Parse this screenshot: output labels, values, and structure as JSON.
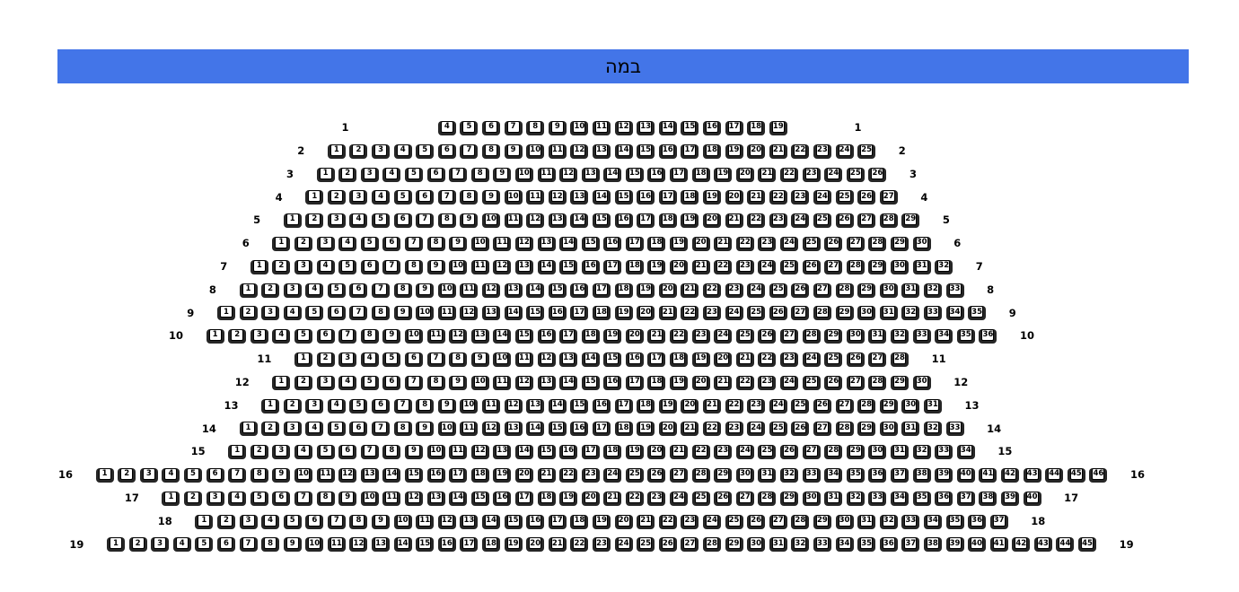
{
  "stage": {
    "label": "במה"
  },
  "colors": {
    "page_background": "#FFFFFF",
    "stage_background": "#4375E8",
    "stage_text": "#000000",
    "seat_frame": "#262626",
    "seat_face": "#FFFFFF",
    "seat_number_text": "#000000",
    "row_label_text": "#000000"
  },
  "rows": [
    {
      "label": "1",
      "leading_empty": 3,
      "trailing_empty": 2,
      "seats": [
        4,
        5,
        6,
        7,
        8,
        9,
        10,
        11,
        12,
        13,
        14,
        15,
        16,
        17,
        18,
        19
      ]
    },
    {
      "label": "2",
      "seats": [
        1,
        2,
        3,
        4,
        5,
        6,
        7,
        8,
        9,
        10,
        11,
        12,
        13,
        14,
        15,
        16,
        17,
        18,
        19,
        20,
        21,
        22,
        23,
        24,
        25
      ]
    },
    {
      "label": "3",
      "seats": [
        1,
        2,
        3,
        4,
        5,
        6,
        7,
        8,
        9,
        10,
        11,
        12,
        13,
        14,
        15,
        16,
        17,
        18,
        19,
        20,
        21,
        22,
        23,
        24,
        25,
        26
      ]
    },
    {
      "label": "4",
      "seats": [
        1,
        2,
        3,
        4,
        5,
        6,
        7,
        8,
        9,
        10,
        11,
        12,
        13,
        14,
        15,
        16,
        17,
        18,
        19,
        20,
        21,
        22,
        23,
        24,
        25,
        26,
        27
      ]
    },
    {
      "label": "5",
      "seats": [
        1,
        2,
        3,
        4,
        5,
        6,
        7,
        8,
        9,
        10,
        11,
        12,
        13,
        14,
        15,
        16,
        17,
        18,
        19,
        20,
        21,
        22,
        23,
        24,
        25,
        26,
        27,
        28,
        29
      ]
    },
    {
      "label": "6",
      "seats": [
        1,
        2,
        3,
        4,
        5,
        6,
        7,
        8,
        9,
        10,
        11,
        12,
        13,
        14,
        15,
        16,
        17,
        18,
        19,
        20,
        21,
        22,
        23,
        24,
        25,
        26,
        27,
        28,
        29,
        30
      ]
    },
    {
      "label": "7",
      "seats": [
        1,
        2,
        3,
        4,
        5,
        6,
        7,
        8,
        9,
        10,
        11,
        12,
        13,
        14,
        15,
        16,
        17,
        18,
        19,
        20,
        21,
        22,
        23,
        24,
        25,
        26,
        27,
        28,
        29,
        30,
        31,
        32
      ]
    },
    {
      "label": "8",
      "seats": [
        1,
        2,
        3,
        4,
        5,
        6,
        7,
        8,
        9,
        10,
        11,
        12,
        13,
        14,
        15,
        16,
        17,
        18,
        19,
        20,
        21,
        22,
        23,
        24,
        25,
        26,
        27,
        28,
        29,
        30,
        31,
        32,
        33
      ]
    },
    {
      "label": "9",
      "seats": [
        1,
        2,
        3,
        4,
        5,
        6,
        7,
        8,
        9,
        10,
        11,
        12,
        13,
        14,
        15,
        16,
        17,
        18,
        19,
        20,
        21,
        22,
        23,
        24,
        25,
        26,
        27,
        28,
        29,
        30,
        31,
        32,
        33,
        34,
        35
      ]
    },
    {
      "label": "10",
      "seats": [
        1,
        2,
        3,
        4,
        5,
        6,
        7,
        8,
        9,
        10,
        11,
        12,
        13,
        14,
        15,
        16,
        17,
        18,
        19,
        20,
        21,
        22,
        23,
        24,
        25,
        26,
        27,
        28,
        29,
        30,
        31,
        32,
        33,
        34,
        35,
        36
      ]
    },
    {
      "label": "11",
      "seats": [
        1,
        2,
        3,
        4,
        5,
        6,
        7,
        8,
        9,
        10,
        11,
        12,
        13,
        14,
        15,
        16,
        17,
        18,
        19,
        20,
        21,
        22,
        23,
        24,
        25,
        26,
        27,
        28
      ]
    },
    {
      "label": "12",
      "seats": [
        1,
        2,
        3,
        4,
        5,
        6,
        7,
        8,
        9,
        10,
        11,
        12,
        13,
        14,
        15,
        16,
        17,
        18,
        19,
        20,
        21,
        22,
        23,
        24,
        25,
        26,
        27,
        28,
        29,
        30
      ]
    },
    {
      "label": "13",
      "seats": [
        1,
        2,
        3,
        4,
        5,
        6,
        7,
        8,
        9,
        10,
        11,
        12,
        13,
        14,
        15,
        16,
        17,
        18,
        19,
        20,
        21,
        22,
        23,
        24,
        25,
        26,
        27,
        28,
        29,
        30,
        31
      ]
    },
    {
      "label": "14",
      "seats": [
        1,
        2,
        3,
        4,
        5,
        6,
        7,
        8,
        9,
        10,
        11,
        12,
        13,
        14,
        15,
        16,
        17,
        18,
        19,
        20,
        21,
        22,
        23,
        24,
        25,
        26,
        27,
        28,
        29,
        30,
        31,
        32,
        33
      ]
    },
    {
      "label": "15",
      "seats": [
        1,
        2,
        3,
        4,
        5,
        6,
        7,
        8,
        9,
        10,
        11,
        12,
        13,
        14,
        15,
        16,
        17,
        18,
        19,
        20,
        21,
        22,
        23,
        24,
        25,
        26,
        27,
        28,
        29,
        30,
        31,
        32,
        33,
        34
      ]
    },
    {
      "label": "16",
      "seats": [
        1,
        2,
        3,
        4,
        5,
        6,
        7,
        8,
        9,
        10,
        11,
        12,
        13,
        14,
        15,
        16,
        17,
        18,
        19,
        20,
        21,
        22,
        23,
        24,
        25,
        26,
        27,
        28,
        29,
        30,
        31,
        32,
        33,
        34,
        35,
        36,
        37,
        38,
        39,
        40,
        41,
        42,
        43,
        44,
        45,
        46
      ]
    },
    {
      "label": "17",
      "seats": [
        1,
        2,
        3,
        4,
        5,
        6,
        7,
        8,
        9,
        10,
        11,
        12,
        13,
        14,
        15,
        16,
        17,
        18,
        19,
        20,
        21,
        22,
        23,
        24,
        25,
        26,
        27,
        28,
        29,
        30,
        31,
        32,
        33,
        34,
        35,
        36,
        37,
        38,
        39,
        40
      ]
    },
    {
      "label": "18",
      "seats": [
        1,
        2,
        3,
        4,
        5,
        6,
        7,
        8,
        9,
        10,
        11,
        12,
        13,
        14,
        15,
        16,
        17,
        18,
        19,
        20,
        21,
        22,
        23,
        24,
        25,
        26,
        27,
        28,
        29,
        30,
        31,
        32,
        33,
        34,
        35,
        36,
        37
      ]
    },
    {
      "label": "19",
      "seats": [
        1,
        2,
        3,
        4,
        5,
        6,
        7,
        8,
        9,
        10,
        11,
        12,
        13,
        14,
        15,
        16,
        17,
        18,
        19,
        20,
        21,
        22,
        23,
        24,
        25,
        26,
        27,
        28,
        29,
        30,
        31,
        32,
        33,
        34,
        35,
        36,
        37,
        38,
        39,
        40,
        41,
        42,
        43,
        44,
        45
      ]
    }
  ]
}
